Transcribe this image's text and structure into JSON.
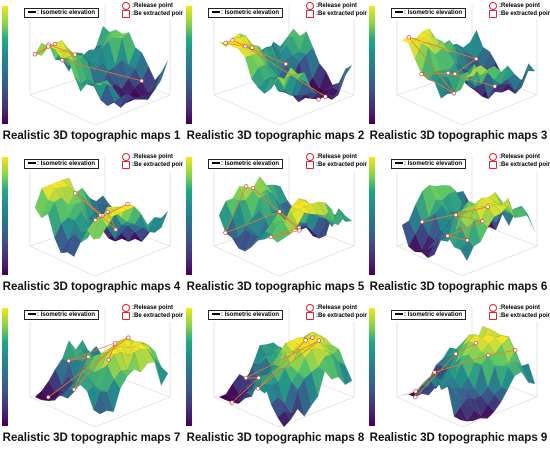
{
  "legend": {
    "isometric": ": Isometric elevation",
    "release": ":Release point",
    "extracted": ":Be extracted point"
  },
  "panels": [
    {
      "caption": "Realistic 3D topographic maps 1"
    },
    {
      "caption": "Realistic 3D topographic maps 2"
    },
    {
      "caption": "Realistic 3D topographic maps 3"
    },
    {
      "caption": "Realistic 3D topographic maps 4"
    },
    {
      "caption": "Realistic 3D topographic maps 5"
    },
    {
      "caption": "Realistic 3D topographic maps 6"
    },
    {
      "caption": "Realistic 3D topographic maps 7"
    },
    {
      "caption": "Realistic 3D topographic maps 8"
    },
    {
      "caption": "Realistic 3D topographic maps 9"
    }
  ],
  "colors": {
    "low": "#440154",
    "mid": "#21918c",
    "high": "#fde725",
    "route": "#e67e22",
    "marker": "#d62728"
  }
}
